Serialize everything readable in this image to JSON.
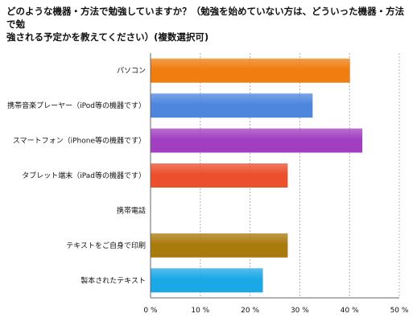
{
  "chart_data": {
    "type": "bar",
    "orientation": "horizontal",
    "title": "どのような機器・方法で勉強していますか？（勉強を始めていない方は、どういった機器・方法で勉\n強される予定かを教えてください）(複数選択可)",
    "categories": [
      "パソコン",
      "携帯音楽プレーヤー（iPod等の機器です）",
      "スマートフォン（iPhone等の機器です）",
      "タブレット端末（iPad等の機器です）",
      "携帯電話",
      "テキストをご自身で印刷",
      "製本されたテキスト"
    ],
    "values": [
      40,
      32.5,
      42.5,
      27.5,
      0,
      27.5,
      22.5
    ],
    "colors": [
      "#f07d10",
      "#4e86dd",
      "#a23fc0",
      "#ec4f2c",
      "#888888",
      "#aa7a0c",
      "#1aa8e6"
    ],
    "xlim": [
      0,
      50
    ],
    "xticks": [
      0,
      10,
      20,
      30,
      40,
      50
    ],
    "xtick_labels": [
      "0 %",
      "10 %",
      "20 %",
      "30 %",
      "40 %",
      "50 %"
    ],
    "grid": true,
    "legend": "none"
  }
}
